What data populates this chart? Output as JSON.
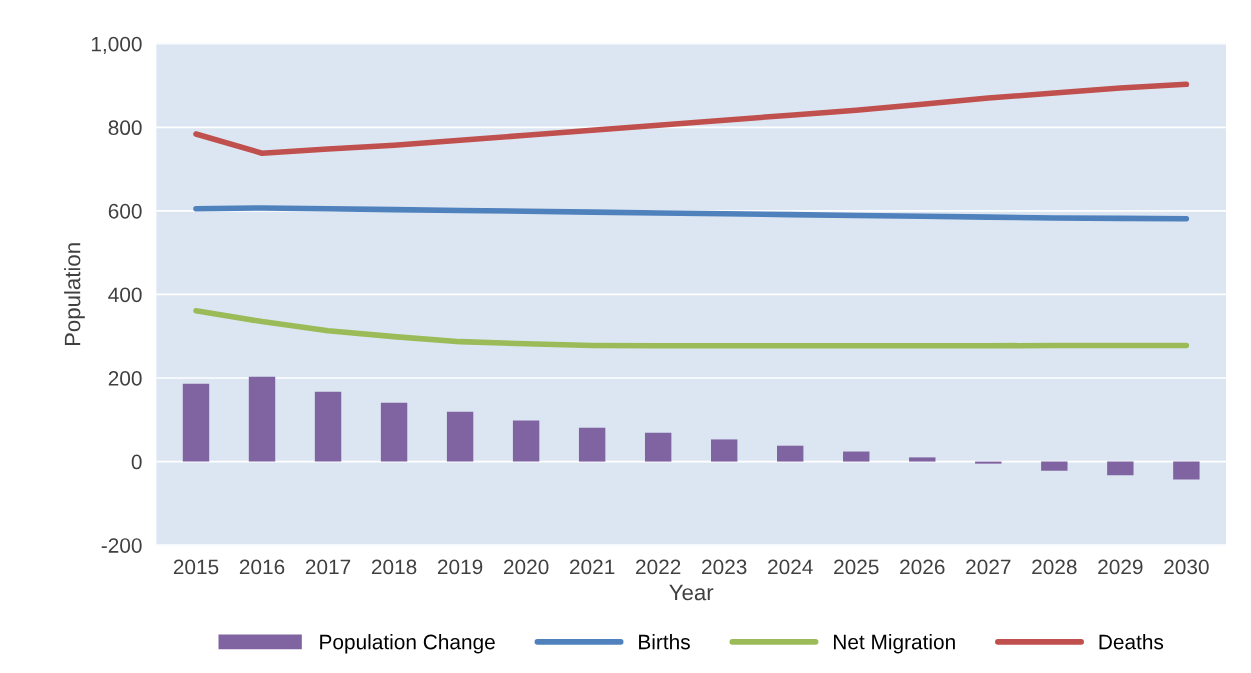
{
  "chart_data": {
    "type": "bar",
    "xlabel": "Year",
    "ylabel": "Population",
    "categories": [
      "2015",
      "2016",
      "2017",
      "2018",
      "2019",
      "2020",
      "2021",
      "2022",
      "2023",
      "2024",
      "2025",
      "2026",
      "2027",
      "2028",
      "2029",
      "2030"
    ],
    "series": [
      {
        "name": "Population Change",
        "color": "#8064a2",
        "values": [
          186,
          203,
          167,
          141,
          119,
          98,
          81,
          69,
          53,
          38,
          24,
          10,
          -5,
          -22,
          -33,
          -43
        ]
      },
      {
        "name": "Births",
        "type": "line",
        "color": "#4f81bd",
        "values": [
          605,
          607,
          605,
          603,
          601,
          599,
          597,
          595,
          593,
          591,
          589,
          587,
          585,
          583,
          582,
          581
        ]
      },
      {
        "name": "Net Migration",
        "type": "line",
        "color": "#9bbb59",
        "values": [
          361,
          335,
          313,
          299,
          287,
          282,
          278,
          277,
          277,
          277,
          277,
          277,
          277,
          278,
          278,
          278
        ]
      },
      {
        "name": "Deaths",
        "type": "line",
        "color": "#c0504d",
        "values": [
          784,
          738,
          748,
          757,
          769,
          781,
          793,
          805,
          817,
          829,
          841,
          855,
          870,
          882,
          894,
          903
        ]
      }
    ],
    "ylim": [
      -200,
      1000
    ],
    "yticks": [
      {
        "value": -200,
        "label": "-200"
      },
      0,
      200,
      400,
      600,
      800,
      {
        "value": 1000,
        "label": "1,000"
      }
    ],
    "grid": "y",
    "legend": "bottom"
  }
}
